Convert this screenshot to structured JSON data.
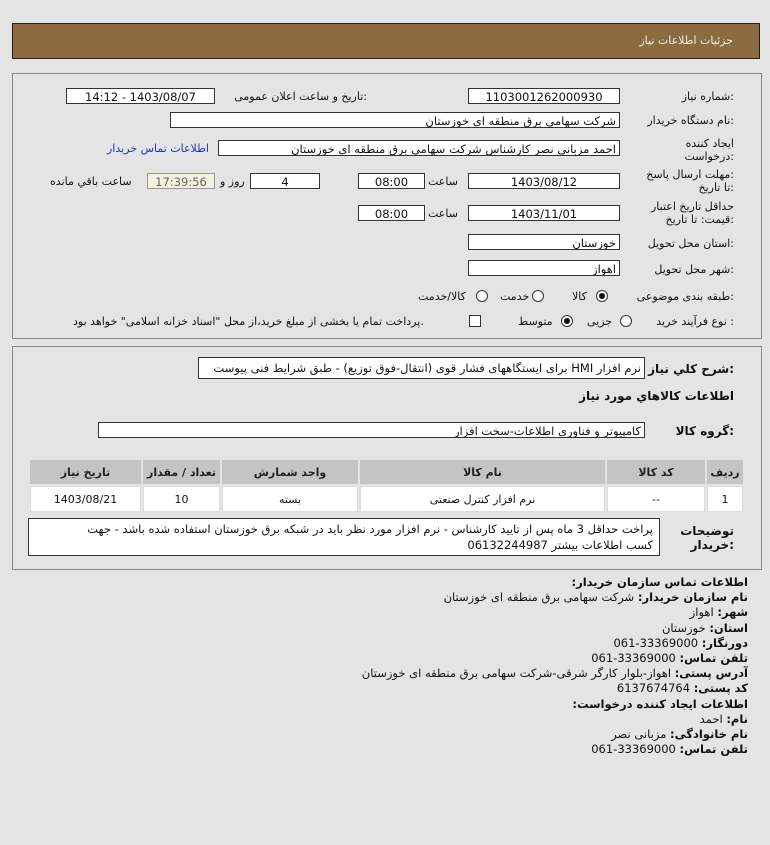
{
  "header": {
    "title": "جزئیات اطلاعات نیاز"
  },
  "form": {
    "need_number_label": "شماره نیاز:",
    "need_number": "1103001262000930",
    "announce_label": "تاریخ و ساعت اعلان عمومی:",
    "announce_value": "1403/08/07 - 14:12",
    "buyer_org_label": "نام دستگاه خریدار:",
    "buyer_org": "شرکت سهامی برق منطقه ای خوزستان",
    "creator_label_1": "ایجاد کننده",
    "creator_label_2": "درخواست:",
    "creator": "احمد مزبانی نصر کارشناس شرکت سهامی برق منطقه ای خوزستان",
    "contact_link": "اطلاعات تماس خریدار",
    "deadline_label_1": "مهلت ارسال پاسخ:",
    "deadline_label_2": "تا تاریخ:",
    "deadline_date": "1403/08/12",
    "time_label": "ساعت",
    "deadline_time": "08:00",
    "days": "4",
    "days_label": "روز و",
    "remaining": "17:39:56",
    "remaining_label": "ساعت باقي مانده",
    "validity_label_1": "حداقل تاریخ اعتبار",
    "validity_label_2": "قیمت: تا تاریخ:",
    "validity_date": "1403/11/01",
    "validity_time": "08:00",
    "province_label": "استان محل تحویل:",
    "province": "خوزستان",
    "city_label": "شهر محل تحویل:",
    "city": "اهواز",
    "category_label": "طبقه بندی موضوعی:",
    "category_options": [
      "کالا",
      "خدمت",
      "کالا/خدمت"
    ],
    "category_selected": "کالا",
    "process_label": "نوع فرآیند خرید :",
    "process_options": [
      "جزیی",
      "متوسط"
    ],
    "process_selected": "متوسط",
    "payment_note": "پرداخت تمام یا بخشی از مبلغ خرید،از محل \"اسناد خزانه اسلامی\" خواهد بود.",
    "payment_checked": false
  },
  "need": {
    "desc_label": "شرح کلي نیاز:",
    "desc": "نرم افزار HMI برای ایستگاههای فشار قوی (انتقال-فوق توزیع) - طبق شرایط فنی پیوست",
    "goods_title": "اطلاعات کالاهاي مورد نیاز",
    "group_label": "گروه کالا:",
    "group": "کامپیوتر و فناوری اطلاعات-سخت افزار",
    "table": {
      "headers": [
        "ردیف",
        "کد کالا",
        "نام کالا",
        "واحد شمارش",
        "تعداد / مقدار",
        "تاریخ نیاز"
      ],
      "rows": [
        [
          "1",
          "--",
          "نرم افزار کنترل صنعتی",
          "بسته",
          "10",
          "1403/08/21"
        ]
      ]
    },
    "notes_label_1": "توضیحات",
    "notes_label_2": "خریدار:",
    "notes_line1": "پراخت حداقل 3 ماه پس از تایید کارشناس - نرم افزار مورد نظر باید در شبکه برق خوزستان استفاده شده باشد - جهت",
    "notes_line2": "کسب اطلاعات بیشتر 06132244987"
  },
  "contact": {
    "title": "اطلاعات تماس سازمان خریدار:",
    "items": [
      {
        "k": "نام سازمان خریدار:",
        "v": "شرکت سهامی برق منطقه ای خوزستان"
      },
      {
        "k": "شهر:",
        "v": "اهواز"
      },
      {
        "k": "استان:",
        "v": "خوزستان"
      },
      {
        "k": "دورنگار:",
        "v": "061-33369000"
      },
      {
        "k": "تلفن تماس:",
        "v": "061-33369000"
      },
      {
        "k": "آدرس پستی:",
        "v": "اهواز-بلوار کارگر شرقی-شرکت سهامی برق منطقه ای خوزستان"
      },
      {
        "k": "کد پستی:",
        "v": "6137674764"
      }
    ],
    "creator_title": "اطلاعات ایجاد کننده درخواست:",
    "creator_items": [
      {
        "k": "نام:",
        "v": "احمد"
      },
      {
        "k": "نام خانوادگی:",
        "v": "مزبانی نصر"
      },
      {
        "k": "تلفن تماس:",
        "v": "061-33369000"
      }
    ]
  }
}
